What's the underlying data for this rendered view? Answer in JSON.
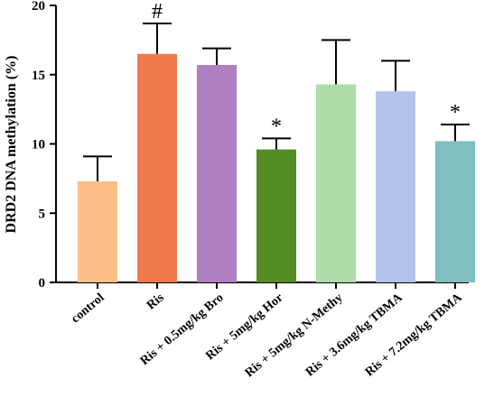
{
  "chart_data": {
    "type": "bar",
    "ylabel": "DRD2 DNA methylation (%)",
    "ylim": [
      0,
      20
    ],
    "yticks": [
      "0",
      "5",
      "10",
      "15",
      "20"
    ],
    "categories": [
      "control",
      "Ris",
      "Ris + 0.5mg/kg Bro",
      "Ris + 5mg/kg Hor",
      "Ris + 5mg/kg N-Methy",
      "Ris + 3.6mg/kg TBMA",
      "Ris + 7.2mg/kg TBMA"
    ],
    "values": [
      7.3,
      16.5,
      15.7,
      9.6,
      14.3,
      13.8,
      10.2
    ],
    "errors": [
      1.8,
      2.2,
      1.2,
      0.8,
      3.2,
      2.2,
      1.2
    ],
    "annotations": [
      "",
      "#",
      "",
      "*",
      "",
      "",
      "*"
    ],
    "colors": [
      "#FDBF85",
      "#EF7B4D",
      "#AF7FC1",
      "#548D24",
      "#AEDDA9",
      "#B1C3EA",
      "#7FBFC0"
    ],
    "grid": false,
    "legend": "none"
  }
}
